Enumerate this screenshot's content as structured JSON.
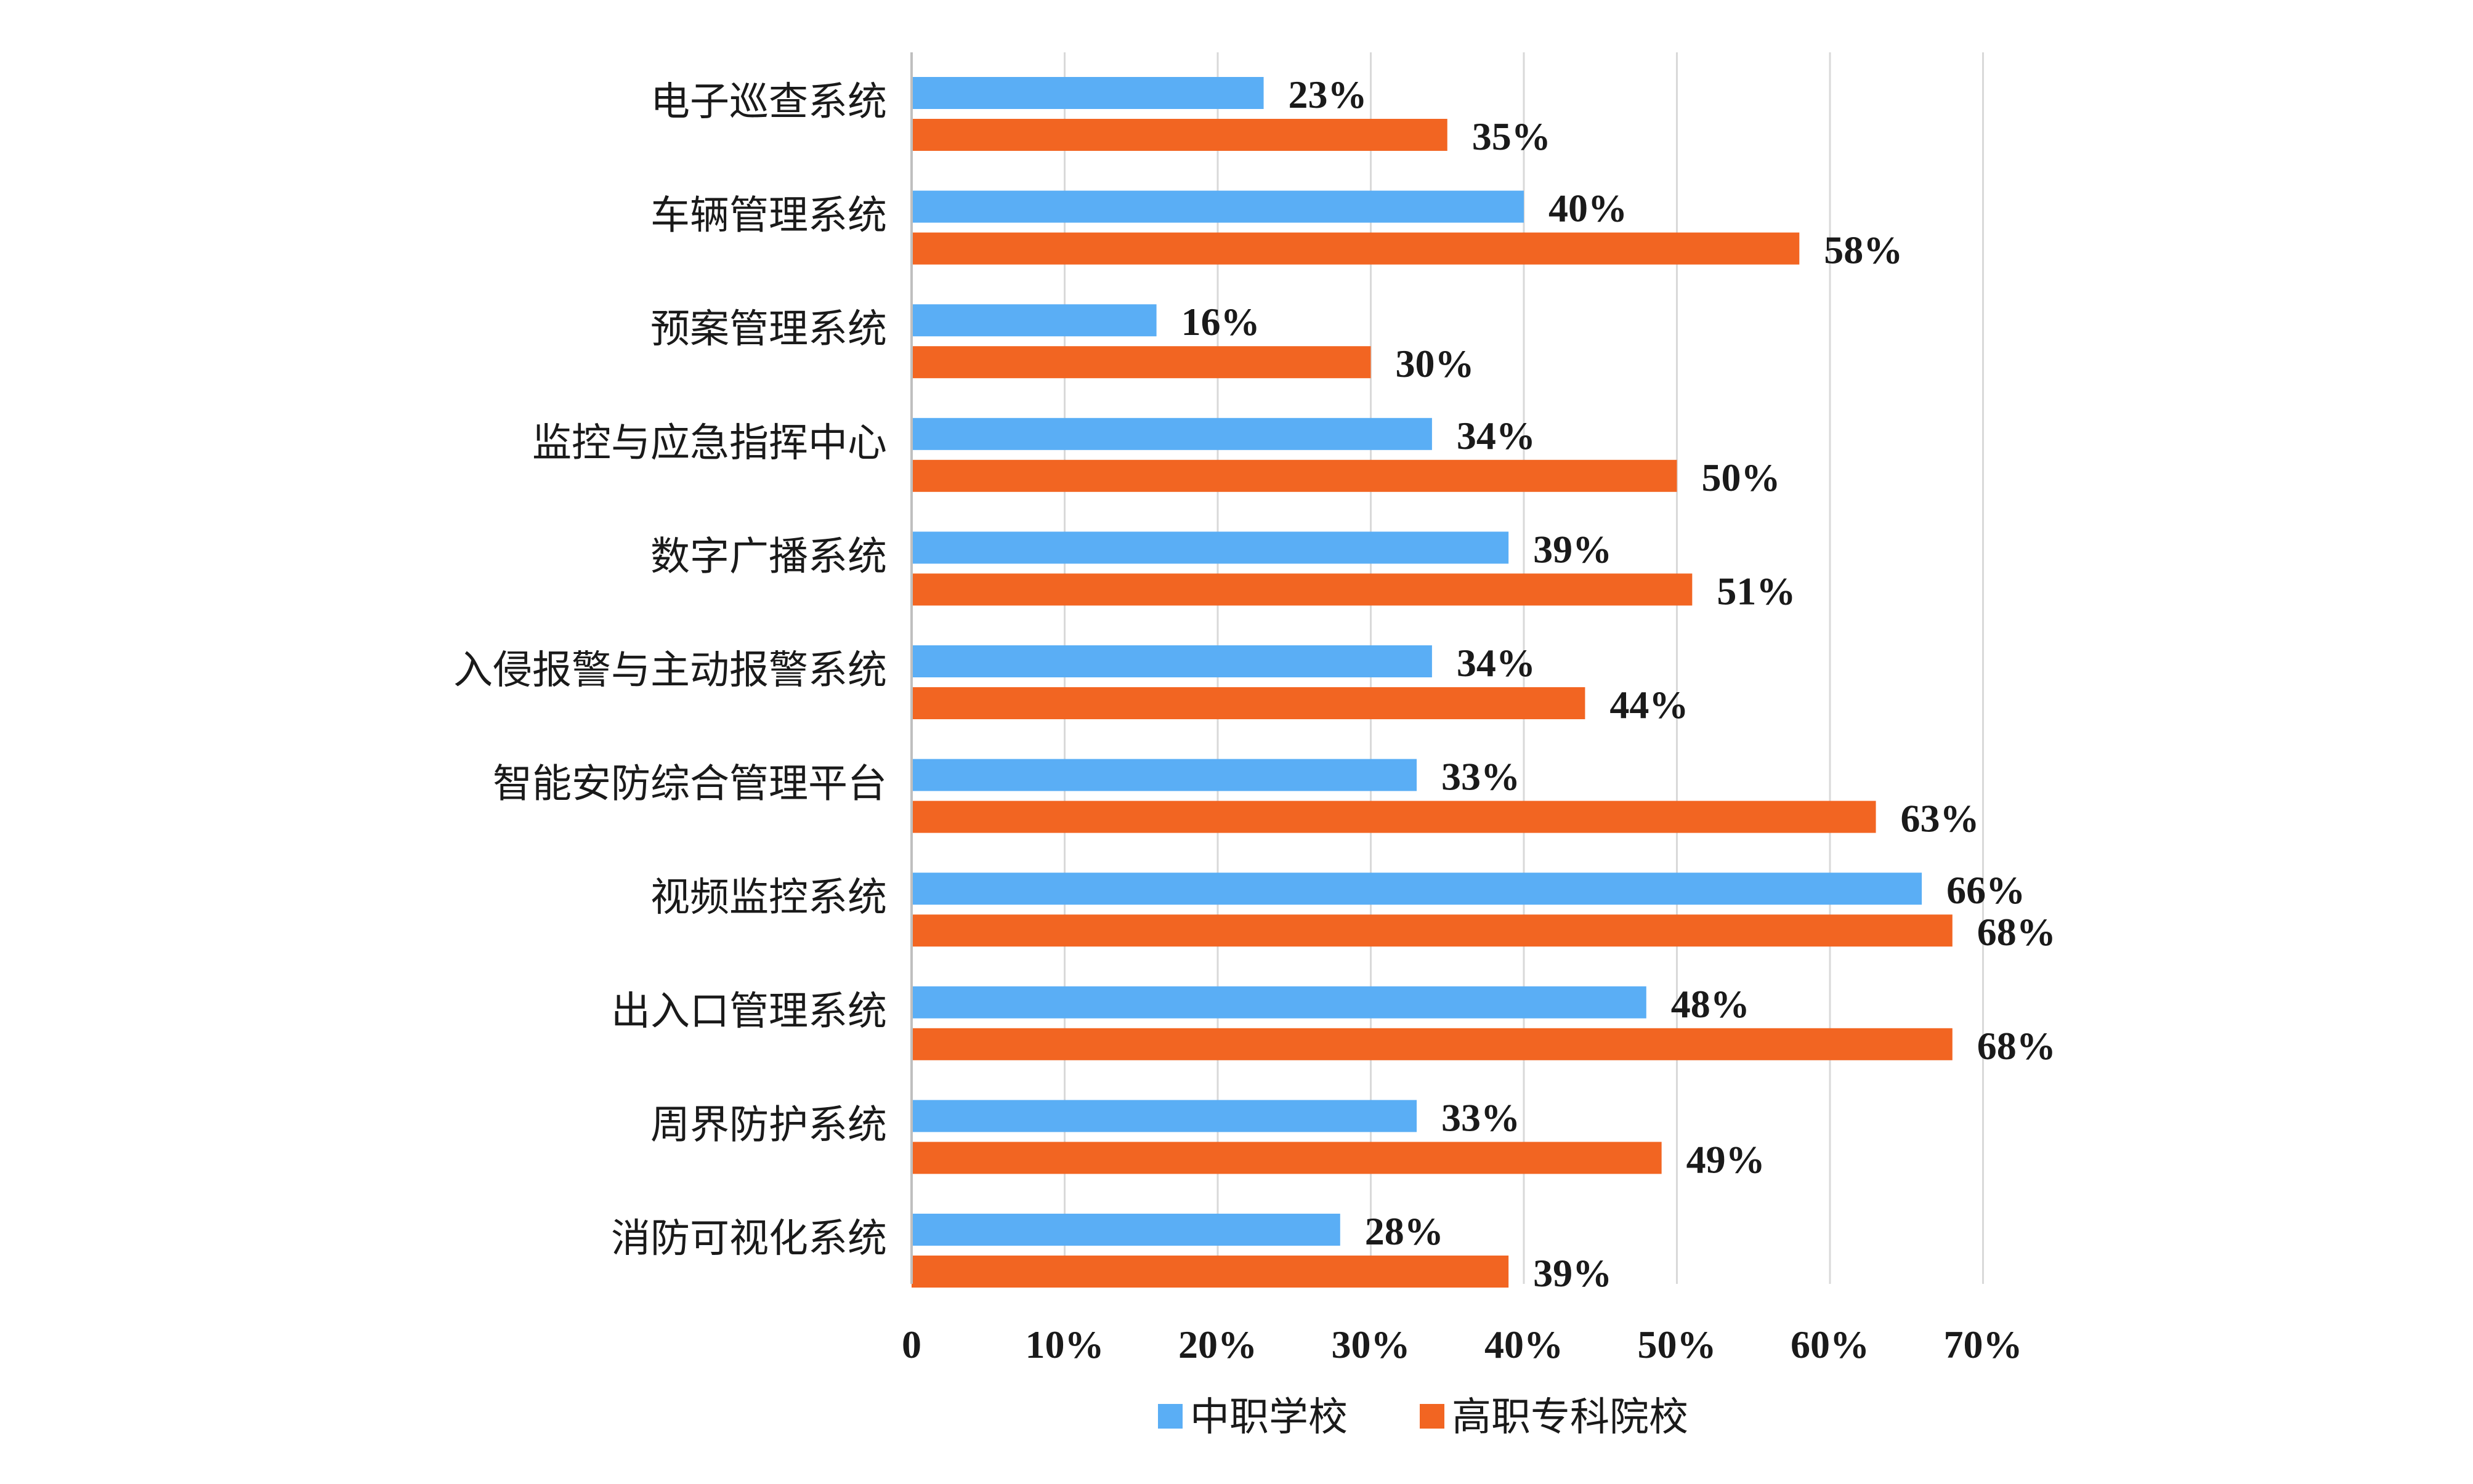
{
  "chart_data": {
    "type": "bar",
    "orientation": "horizontal",
    "categories": [
      "电子巡查系统",
      "车辆管理系统",
      "预案管理系统",
      "监控与应急指挥中心",
      "数字广播系统",
      "入侵报警与主动报警系统",
      "智能安防综合管理平台",
      "视频监控系统",
      "出入口管理系统",
      "周界防护系统",
      "消防可视化系统"
    ],
    "series": [
      {
        "name": "中职学校",
        "color": "#5aaef5",
        "values": [
          23,
          40,
          16,
          34,
          39,
          34,
          33,
          66,
          48,
          33,
          28
        ]
      },
      {
        "name": "高职专科院校",
        "color": "#f26522",
        "values": [
          35,
          58,
          30,
          50,
          51,
          44,
          63,
          68,
          68,
          49,
          39
        ]
      }
    ],
    "x_ticks": [
      "0",
      "10%",
      "20%",
      "30%",
      "40%",
      "50%",
      "60%",
      "70%"
    ],
    "xlim": [
      0,
      70
    ],
    "grid": true,
    "legend_position": "bottom",
    "title": "",
    "xlabel": "",
    "ylabel": ""
  }
}
